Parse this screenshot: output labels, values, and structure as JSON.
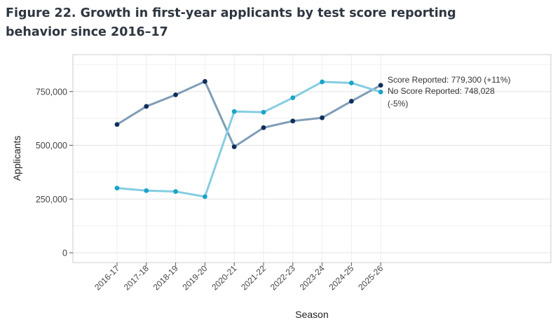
{
  "figure_title": "Figure 22. Growth in first-year applicants by test score reporting behavior since 2016–17",
  "chart_data": {
    "type": "line",
    "xlabel": "Season",
    "ylabel": "Applicants",
    "categories": [
      "2016-17",
      "2017-18",
      "2018-19",
      "2019-20",
      "2020-21",
      "2021-22",
      "2022-23",
      "2023-24",
      "2024-25",
      "2025-26"
    ],
    "ylim": [
      0,
      860000
    ],
    "yticks": [
      0,
      250000,
      500000,
      750000
    ],
    "ytick_labels": [
      "0",
      "250,000",
      "500,000",
      "750,000"
    ],
    "grid": true,
    "series": [
      {
        "key": "score",
        "line_color": "#7f9db7",
        "point_color": "#0f2f5c",
        "values": [
          597000,
          681000,
          735000,
          797000,
          493000,
          582000,
          613000,
          628000,
          705000,
          779300
        ]
      },
      {
        "key": "noscore",
        "line_color": "#85cde2",
        "point_color": "#1aa3c8",
        "values": [
          301000,
          289000,
          285000,
          261000,
          657000,
          654000,
          721000,
          795000,
          790000,
          748028
        ]
      }
    ],
    "annotations": [
      "Score Reported: 779,300 (+11%)",
      "No Score Reported: 748,028",
      "(-5%)"
    ]
  }
}
